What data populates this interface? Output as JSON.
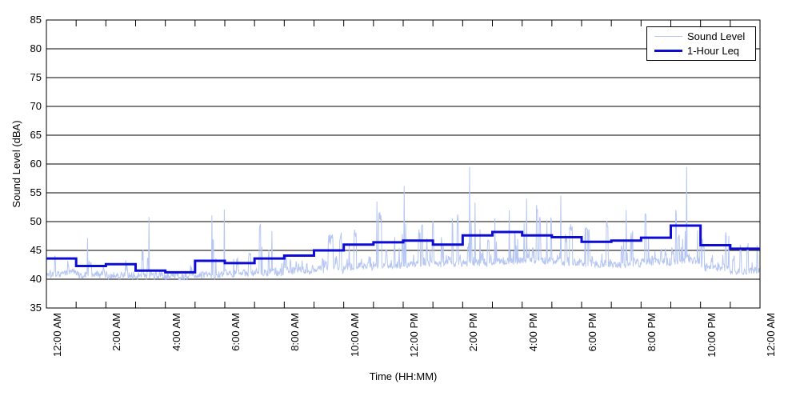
{
  "chart_data": {
    "type": "line",
    "title": "",
    "xlabel": "Time (HH:MM)",
    "ylabel": "Sound Level (dBA)",
    "ylim": [
      35,
      85
    ],
    "yticks": [
      35,
      40,
      45,
      50,
      55,
      60,
      65,
      70,
      75,
      80,
      85
    ],
    "xlim_hours": [
      0,
      24
    ],
    "xtick_minor_interval_hours": 1,
    "xtick_labeled_hours": [
      0,
      2,
      4,
      6,
      8,
      10,
      12,
      14,
      16,
      18,
      20,
      22,
      24
    ],
    "xtick_labels": [
      "12:00 AM",
      "2:00 AM",
      "4:00 AM",
      "6:00 AM",
      "8:00 AM",
      "10:00 AM",
      "12:00 PM",
      "2:00 PM",
      "4:00 PM",
      "6:00 PM",
      "8:00 PM",
      "10:00 PM",
      "12:00 AM"
    ],
    "grid": {
      "horizontal": true,
      "vertical": false,
      "color": "#000000"
    },
    "axis_color": "#000000",
    "background_color": "#ffffff",
    "legend": {
      "position": "top-right",
      "entries": [
        {
          "label": "Sound Level",
          "color": "#b6c6f2",
          "line_width": 1
        },
        {
          "label": "1-Hour Leq",
          "color": "#0c0cd6",
          "line_width": 3
        }
      ]
    },
    "series": [
      {
        "name": "Sound Level",
        "color": "#b6c6f2",
        "line_width": 1,
        "representation": "synthesized-noise",
        "samples_per_hour": 60,
        "seed": 1337,
        "hourly_noise_profile": [
          {
            "floor": 40.2,
            "peak": 48.5,
            "burst_prob": 0.32
          },
          {
            "floor": 40.1,
            "peak": 47.5,
            "burst_prob": 0.26
          },
          {
            "floor": 40.0,
            "peak": 48.0,
            "burst_prob": 0.26
          },
          {
            "floor": 39.9,
            "peak": 46.5,
            "burst_prob": 0.22
          },
          {
            "floor": 39.8,
            "peak": 44.5,
            "burst_prob": 0.16
          },
          {
            "floor": 40.0,
            "peak": 49.5,
            "burst_prob": 0.3
          },
          {
            "floor": 40.3,
            "peak": 48.5,
            "burst_prob": 0.36
          },
          {
            "floor": 40.5,
            "peak": 49.5,
            "burst_prob": 0.38
          },
          {
            "floor": 40.8,
            "peak": 50.0,
            "burst_prob": 0.42
          },
          {
            "floor": 41.0,
            "peak": 51.0,
            "burst_prob": 0.46
          },
          {
            "floor": 41.5,
            "peak": 51.5,
            "burst_prob": 0.5
          },
          {
            "floor": 41.8,
            "peak": 52.0,
            "burst_prob": 0.5
          },
          {
            "floor": 42.0,
            "peak": 52.0,
            "burst_prob": 0.52
          },
          {
            "floor": 42.0,
            "peak": 52.5,
            "burst_prob": 0.55
          },
          {
            "floor": 42.2,
            "peak": 53.0,
            "burst_prob": 0.55
          },
          {
            "floor": 42.5,
            "peak": 53.5,
            "burst_prob": 0.58
          },
          {
            "floor": 42.5,
            "peak": 53.0,
            "burst_prob": 0.55
          },
          {
            "floor": 42.2,
            "peak": 52.0,
            "burst_prob": 0.5
          },
          {
            "floor": 42.0,
            "peak": 50.5,
            "burst_prob": 0.46
          },
          {
            "floor": 42.0,
            "peak": 51.0,
            "burst_prob": 0.46
          },
          {
            "floor": 42.3,
            "peak": 51.5,
            "burst_prob": 0.5
          },
          {
            "floor": 42.5,
            "peak": 52.0,
            "burst_prob": 0.55
          },
          {
            "floor": 41.3,
            "peak": 49.0,
            "burst_prob": 0.4
          },
          {
            "floor": 40.8,
            "peak": 47.5,
            "burst_prob": 0.32
          }
        ],
        "notable_spikes": [
          [
            3.45,
            50.8
          ],
          [
            5.56,
            51.1
          ],
          [
            5.99,
            52.1
          ],
          [
            11.12,
            53.5
          ],
          [
            12.03,
            56.2
          ],
          [
            14.23,
            59.5
          ],
          [
            14.42,
            53.3
          ],
          [
            16.15,
            54.0
          ],
          [
            17.3,
            54.5
          ],
          [
            19.5,
            52.0
          ],
          [
            21.53,
            59.5
          ]
        ]
      },
      {
        "name": "1-Hour Leq",
        "color": "#0c0cd6",
        "line_width": 3,
        "representation": "hourly-step",
        "hourly_values": [
          43.6,
          42.3,
          42.6,
          41.5,
          41.2,
          43.2,
          42.8,
          43.6,
          44.1,
          45.0,
          46.0,
          46.4,
          46.7,
          46.0,
          47.6,
          48.2,
          47.6,
          47.3,
          46.5,
          46.7,
          47.2,
          49.3,
          45.9,
          45.3
        ]
      }
    ]
  }
}
